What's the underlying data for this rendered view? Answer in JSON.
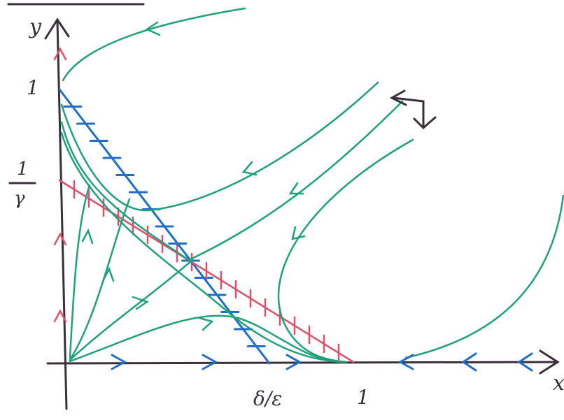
{
  "axes": {
    "x_label": "x",
    "y_label": "y"
  },
  "tick_labels": {
    "y_one": "1",
    "y_inv_gamma_numerator": "1",
    "y_inv_gamma_denominator": "γ",
    "x_delta_over_epsilon": "δ/ε",
    "x_one": "1"
  }
}
